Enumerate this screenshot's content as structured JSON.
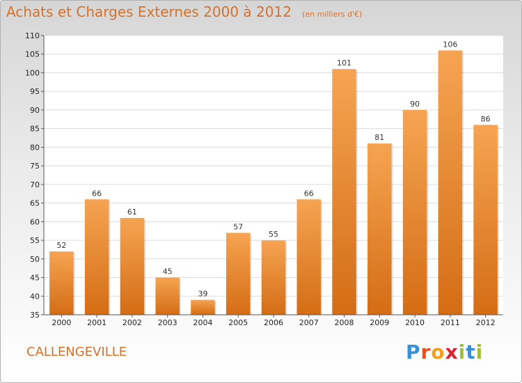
{
  "header": {
    "title": "Achats et Charges Externes 2000 à 2012",
    "subtitle": "(en milliers d'€)"
  },
  "footer": {
    "city": "CALLENGEVILLE",
    "logo": [
      "P",
      "r",
      "o",
      "x",
      "i",
      "t",
      "i"
    ]
  },
  "colors": {
    "accent": "#d4722c",
    "bar_top": "#f6a452",
    "bar_bottom": "#d46d15",
    "logo": [
      "#3a8fd4",
      "#e9501e",
      "#f2a01c",
      "#d8222d",
      "#9cc03a",
      "#3a8fd4",
      "#9cc03a"
    ]
  },
  "chart_data": {
    "type": "bar",
    "categories": [
      "2000",
      "2001",
      "2002",
      "2003",
      "2004",
      "2005",
      "2006",
      "2007",
      "2008",
      "2009",
      "2010",
      "2011",
      "2012"
    ],
    "values": [
      52,
      66,
      61,
      45,
      39,
      57,
      55,
      66,
      101,
      81,
      90,
      106,
      86
    ],
    "title": "Achats et Charges Externes 2000 à 2012",
    "subtitle": "(en milliers d'€)",
    "ylim": [
      35,
      110
    ],
    "yticks": [
      35,
      40,
      45,
      50,
      55,
      60,
      65,
      70,
      75,
      80,
      85,
      90,
      95,
      100,
      105,
      110
    ],
    "grid": true
  }
}
